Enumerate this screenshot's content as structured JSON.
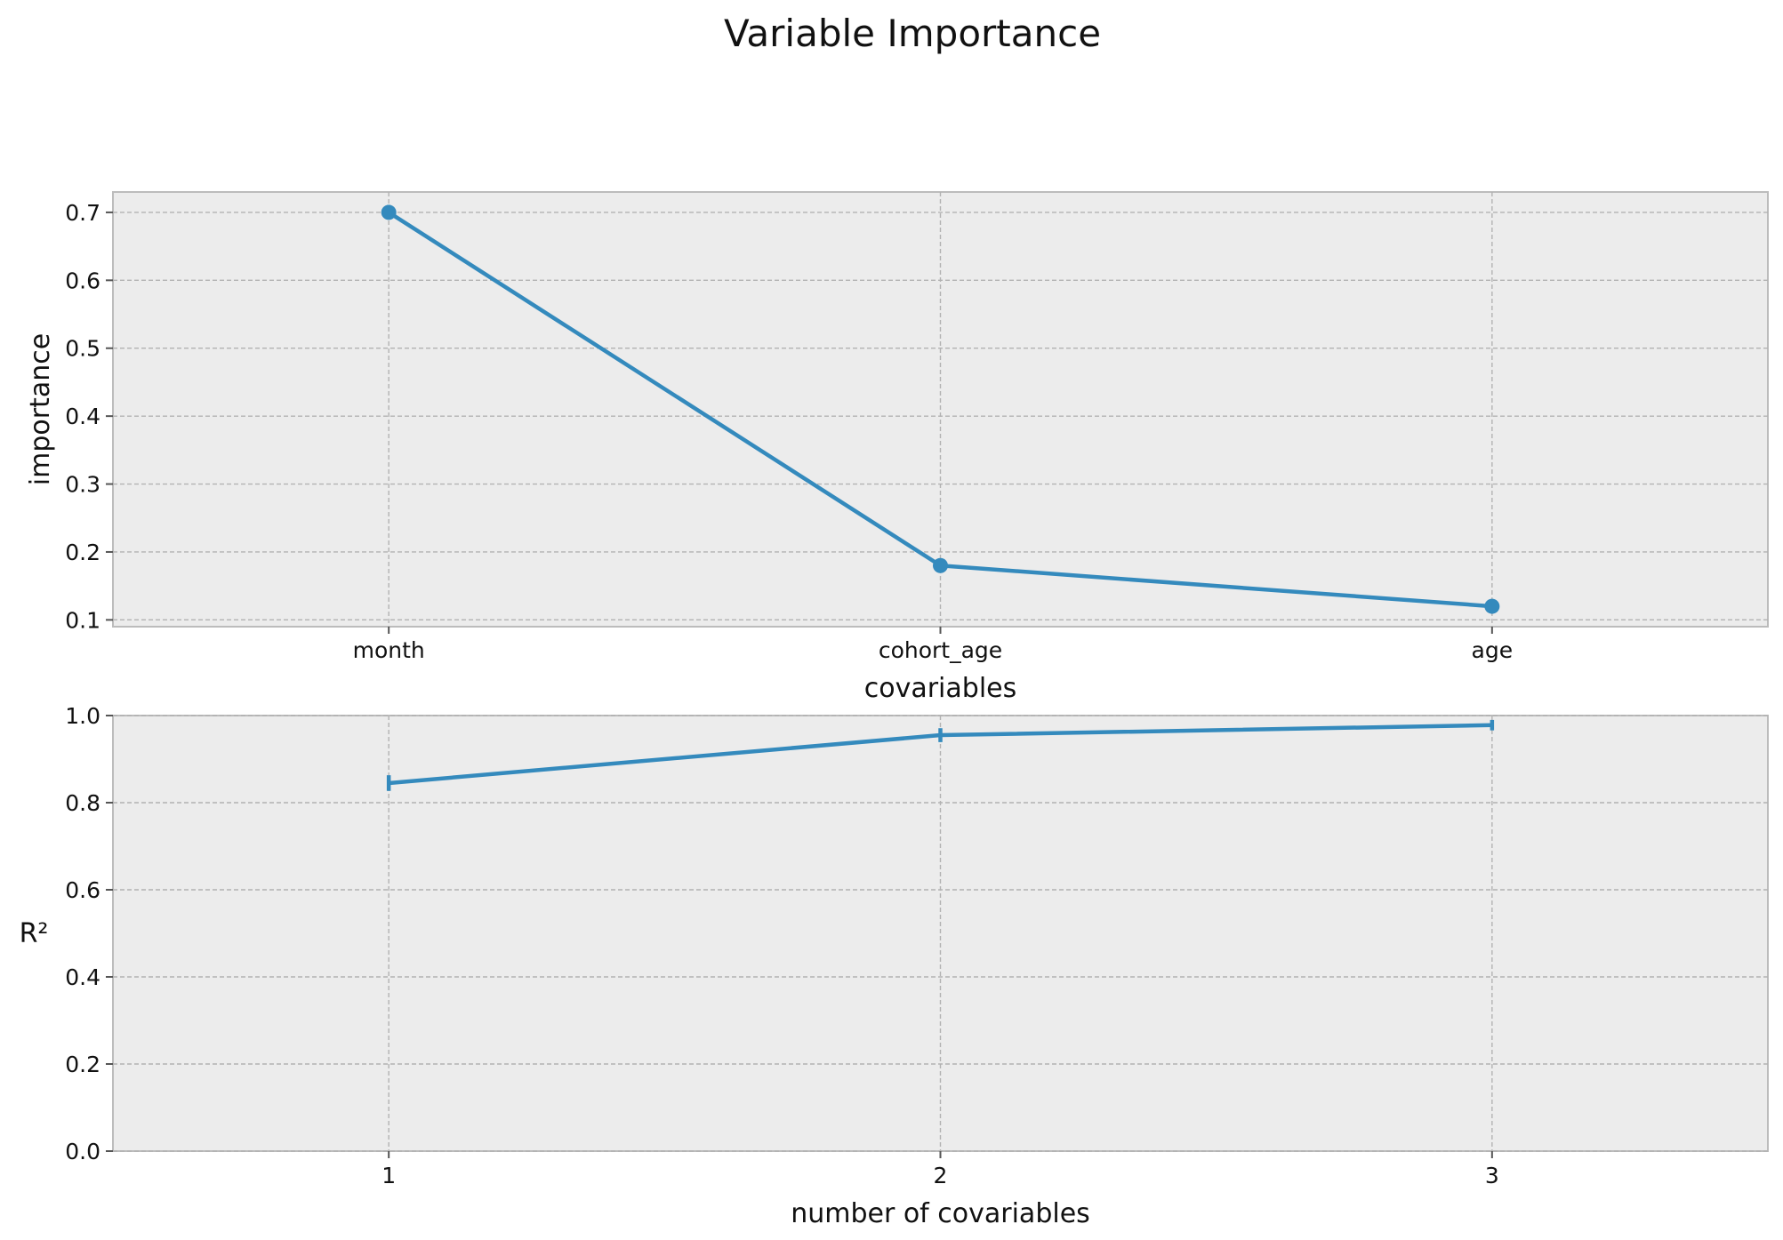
{
  "figure": {
    "title": "Variable Importance"
  },
  "colors": {
    "series": "#348abd",
    "panel_bg": "#ececec",
    "grid": "#b2b2b2"
  },
  "chart_data": [
    {
      "type": "line",
      "categories": [
        "month",
        "cohort_age",
        "age"
      ],
      "series": [
        {
          "values": [
            0.7,
            0.18,
            0.12
          ]
        }
      ],
      "xlabel": "covariables",
      "ylabel": "importance",
      "ylim": [
        0.09,
        0.73
      ],
      "yticks": [
        0.1,
        0.2,
        0.3,
        0.4,
        0.5,
        0.6,
        0.7
      ],
      "yticklabels": [
        "0.1",
        "0.2",
        "0.3",
        "0.4",
        "0.5",
        "0.6",
        "0.7"
      ],
      "markers": "circle",
      "grid": true
    },
    {
      "type": "line",
      "x": [
        1,
        2,
        3
      ],
      "series": [
        {
          "values": [
            0.845,
            0.955,
            0.978
          ],
          "error": [
            0.018,
            0.016,
            0.012
          ]
        }
      ],
      "xlabel": "number of covariables",
      "ylabel": "R²",
      "xlim": [
        0.5,
        3.5
      ],
      "ylim": [
        0.0,
        1.0
      ],
      "xticks": [
        1,
        2,
        3
      ],
      "xticklabels": [
        "1",
        "2",
        "3"
      ],
      "yticks": [
        0.0,
        0.2,
        0.4,
        0.6,
        0.8,
        1.0
      ],
      "yticklabels": [
        "0.0",
        "0.2",
        "0.4",
        "0.6",
        "0.8",
        "1.0"
      ],
      "markers": "errorbar",
      "grid": true
    }
  ]
}
